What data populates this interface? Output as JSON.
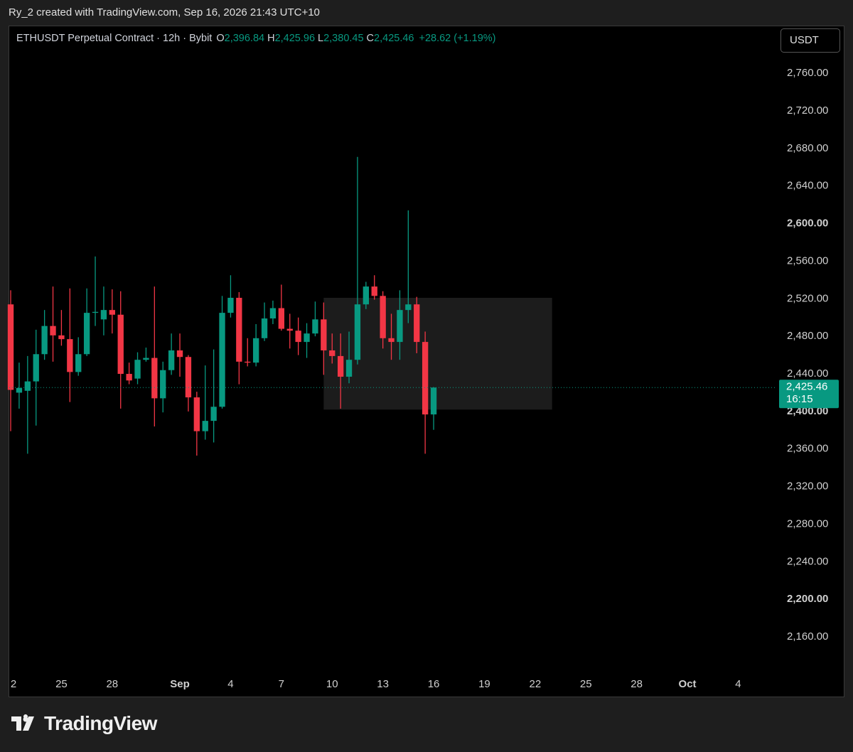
{
  "page": {
    "attribution": "Ry_2 created with TradingView.com, Sep 16, 2026 21:43 UTC+10",
    "logo": "TradingView"
  },
  "chart_data": {
    "type": "candlestick",
    "title": "ETHUSDT Perpetual Contract · 12h · Bybit",
    "ohlc_legend": [
      {
        "key": "O",
        "value": "2,396.84"
      },
      {
        "key": "H",
        "value": "2,425.96"
      },
      {
        "key": "L",
        "value": "2,380.45"
      },
      {
        "key": "C",
        "value": "2,425.46"
      }
    ],
    "change_label": "+28.62 (+1.19%)",
    "currency": "USDT",
    "up_color": "#089981",
    "down_color": "#f23645",
    "open": [
      2514,
      2420,
      2422,
      2432,
      2461,
      2491,
      2481,
      2477,
      2442,
      2461,
      2505,
      2498,
      2508,
      2503,
      2440,
      2435,
      2455,
      2457,
      2414,
      2444,
      2465,
      2458,
      2415,
      2379,
      2390,
      2405,
      2505,
      2521,
      2453,
      2452,
      2478,
      2499,
      2510,
      2488,
      2486,
      2474,
      2483,
      2498,
      2465,
      2459,
      2437,
      2455,
      2514,
      2533,
      2523,
      2478,
      2474,
      2508,
      2514,
      2474,
      2396.84
    ],
    "high": [
      2529,
      2452,
      2459,
      2487,
      2508,
      2533,
      2508,
      2531,
      2479,
      2531,
      2565,
      2533,
      2530,
      2528,
      2452,
      2463,
      2468,
      2533,
      2453,
      2483,
      2483,
      2460,
      2421,
      2449,
      2466,
      2523,
      2545,
      2527,
      2478,
      2493,
      2516,
      2518,
      2535,
      2504,
      2500,
      2494,
      2517,
      2516,
      2483,
      2483,
      2485,
      2671,
      2538,
      2545,
      2528,
      2504,
      2529,
      2614,
      2522,
      2485,
      2425.96
    ],
    "low": [
      2379,
      2403,
      2355,
      2385,
      2455,
      2453,
      2470,
      2410,
      2438,
      2459,
      2491,
      2481,
      2483,
      2403,
      2429,
      2429,
      2453,
      2384,
      2399,
      2439,
      2437,
      2400,
      2353,
      2370,
      2367,
      2403,
      2500,
      2429,
      2448,
      2448,
      2475,
      2493,
      2486,
      2467,
      2460,
      2457,
      2480,
      2439,
      2451,
      2403,
      2430,
      2450,
      2509,
      2519,
      2467,
      2455,
      2455,
      2494,
      2462,
      2355,
      2380.45
    ],
    "close": [
      2423,
      2425,
      2432,
      2461,
      2491,
      2481,
      2477,
      2442,
      2461,
      2505,
      2506,
      2508,
      2503,
      2440,
      2433,
      2455,
      2457,
      2414,
      2444,
      2465,
      2458,
      2415,
      2379,
      2390,
      2405,
      2505,
      2521,
      2453,
      2452,
      2478,
      2499,
      2510,
      2488,
      2486,
      2474,
      2483,
      2498,
      2465,
      2459,
      2437,
      2455,
      2514,
      2533,
      2523,
      2478,
      2474,
      2508,
      2514,
      2474,
      2396.84,
      2425.46
    ],
    "last_price_label": "2,425.46",
    "countdown": "16:15",
    "range_box": {
      "start": 37,
      "end": 64,
      "top": 2521,
      "bottom": 2402
    },
    "xlim": [
      -0.17,
      90.5
    ],
    "xticks": [
      {
        "value": 0,
        "label": "2"
      },
      {
        "value": 6,
        "label": "25"
      },
      {
        "value": 12,
        "label": "28"
      },
      {
        "value": 20,
        "label": "Sep"
      },
      {
        "value": 26,
        "label": "4"
      },
      {
        "value": 32,
        "label": "7"
      },
      {
        "value": 38,
        "label": "10"
      },
      {
        "value": 44,
        "label": "13"
      },
      {
        "value": 50,
        "label": "16"
      },
      {
        "value": 56,
        "label": "19"
      },
      {
        "value": 62,
        "label": "22"
      },
      {
        "value": 68,
        "label": "25"
      },
      {
        "value": 74,
        "label": "28"
      },
      {
        "value": 80,
        "label": "Oct"
      },
      {
        "value": 86,
        "label": "4"
      }
    ],
    "ylim": [
      2123,
      2810
    ],
    "yticks": [
      {
        "value": 2160,
        "label": "2,160.00"
      },
      {
        "value": 2200,
        "label": "2,200.00"
      },
      {
        "value": 2240,
        "label": "2,240.00"
      },
      {
        "value": 2280,
        "label": "2,280.00"
      },
      {
        "value": 2320,
        "label": "2,320.00"
      },
      {
        "value": 2360,
        "label": "2,360.00"
      },
      {
        "value": 2400,
        "label": "2,400.00"
      },
      {
        "value": 2440,
        "label": "2,440.00"
      },
      {
        "value": 2480,
        "label": "2,480.00"
      },
      {
        "value": 2520,
        "label": "2,520.00"
      },
      {
        "value": 2560,
        "label": "2,560.00"
      },
      {
        "value": 2600,
        "label": "2,600.00"
      },
      {
        "value": 2640,
        "label": "2,640.00"
      },
      {
        "value": 2680,
        "label": "2,680.00"
      },
      {
        "value": 2720,
        "label": "2,720.00"
      },
      {
        "value": 2760,
        "label": "2,760.00"
      }
    ]
  }
}
